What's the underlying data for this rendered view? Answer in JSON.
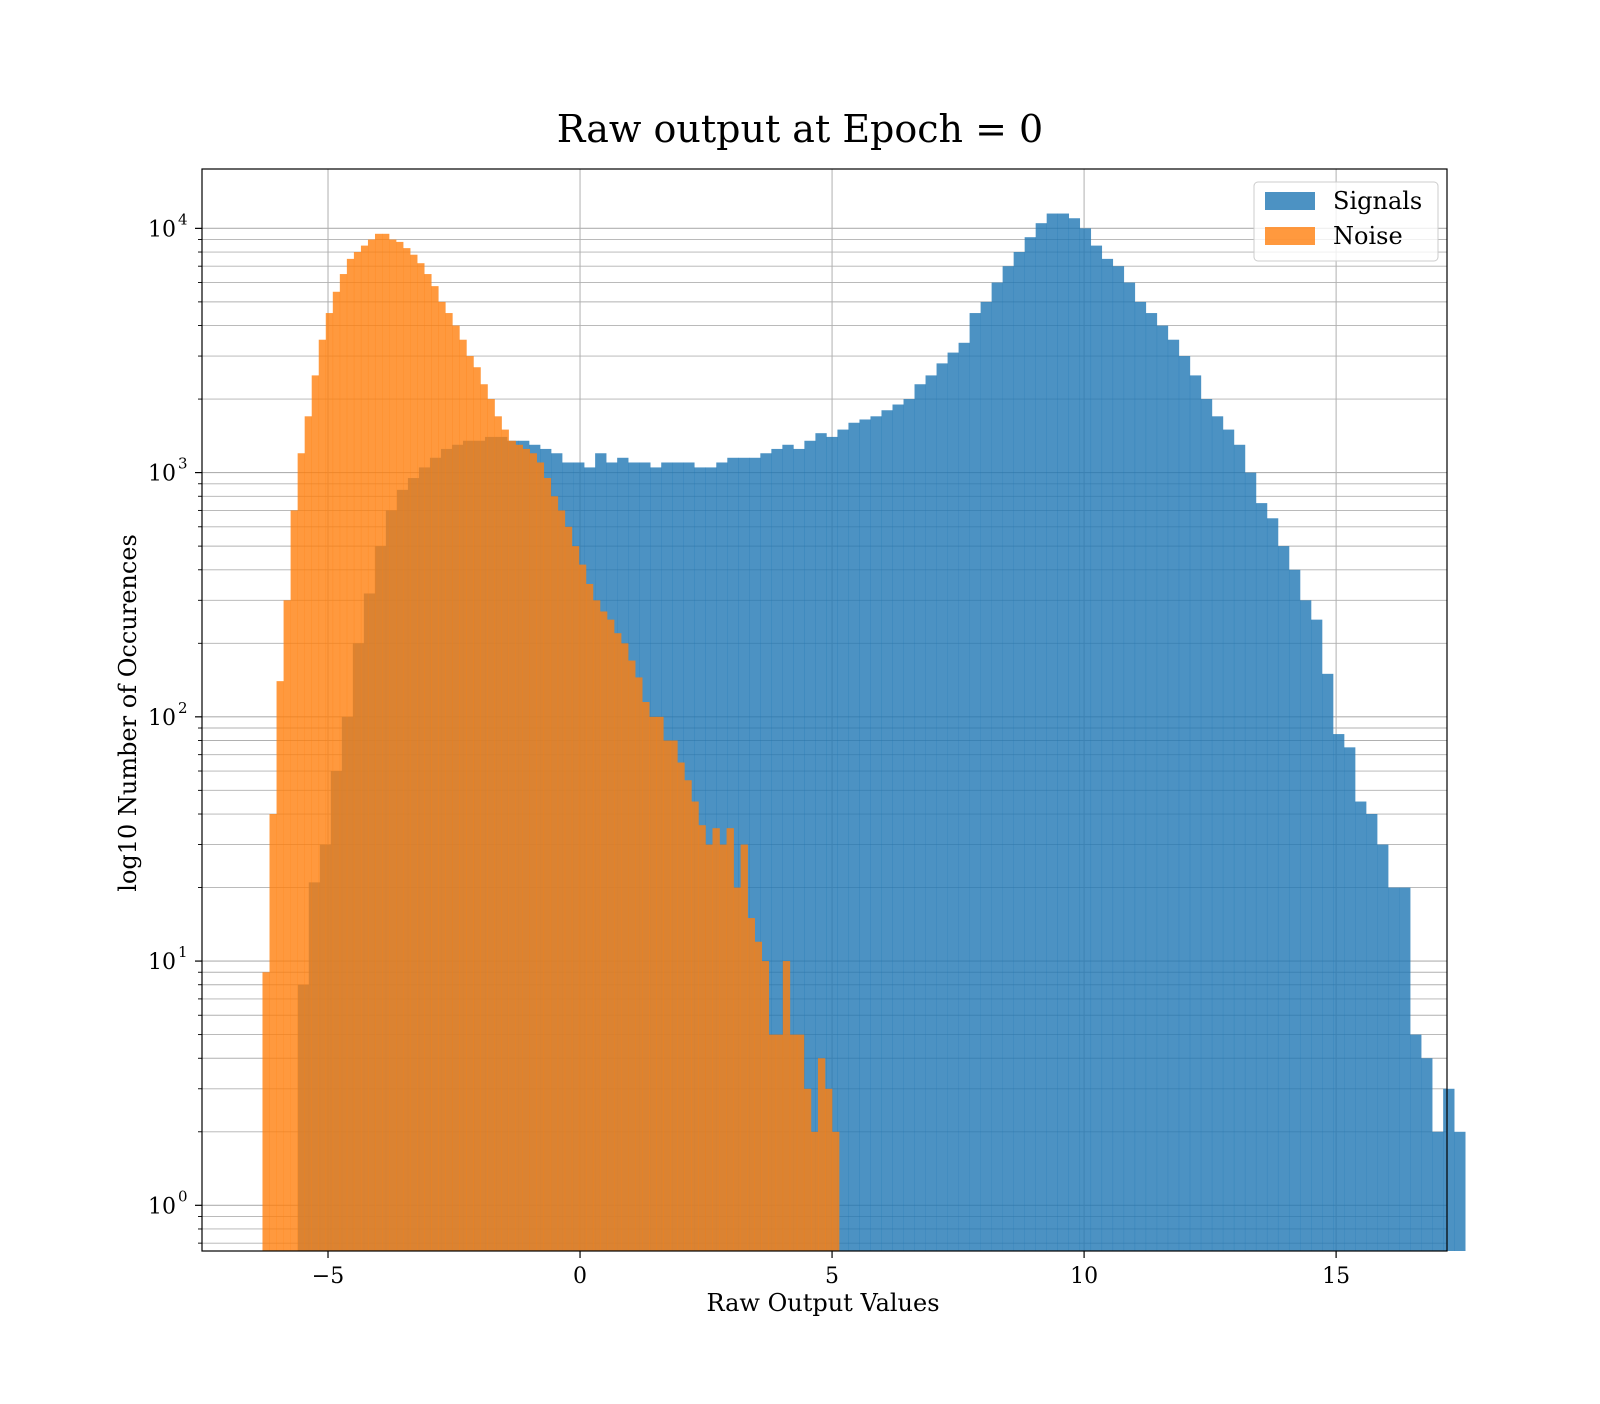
{
  "chart_data": {
    "type": "bar",
    "title": "Raw output at Epoch = 0",
    "xlabel": "Raw Output Values",
    "ylabel": "log10 Number of Occurences",
    "xlim": [
      -7.5,
      17.2
    ],
    "ylim": [
      0.65,
      17500
    ],
    "yscale": "log",
    "grid": true,
    "legend_position": "top-right",
    "x_ticks": [
      {
        "value": -5,
        "label": "−5"
      },
      {
        "value": 0,
        "label": "0"
      },
      {
        "value": 5,
        "label": "5"
      },
      {
        "value": 10,
        "label": "10"
      },
      {
        "value": 15,
        "label": "15"
      }
    ],
    "y_ticks": [
      {
        "value": 1,
        "base": "10",
        "exp": "0"
      },
      {
        "value": 10,
        "base": "10",
        "exp": "1"
      },
      {
        "value": 100,
        "base": "10",
        "exp": "2"
      },
      {
        "value": 1000,
        "base": "10",
        "exp": "3"
      },
      {
        "value": 10000,
        "base": "10",
        "exp": "4"
      }
    ],
    "series": [
      {
        "name": "Signals",
        "color": "#1f77b4",
        "opacity": 0.8,
        "bin_start": -5.6,
        "bin_width": 0.2185,
        "counts": [
          8,
          21,
          30,
          60,
          100,
          200,
          320,
          500,
          700,
          850,
          950,
          1050,
          1150,
          1250,
          1300,
          1350,
          1350,
          1400,
          1400,
          1350,
          1350,
          1300,
          1250,
          1200,
          1100,
          1100,
          1050,
          1200,
          1100,
          1150,
          1100,
          1100,
          1050,
          1100,
          1100,
          1100,
          1050,
          1050,
          1100,
          1150,
          1150,
          1150,
          1200,
          1250,
          1300,
          1250,
          1350,
          1450,
          1400,
          1500,
          1600,
          1650,
          1700,
          1800,
          1900,
          2000,
          2300,
          2500,
          2800,
          3100,
          3400,
          4500,
          5000,
          6000,
          7000,
          8000,
          9200,
          10500,
          11500,
          11500,
          11000,
          10000,
          8500,
          7500,
          7000,
          6000,
          5000,
          4500,
          4000,
          3500,
          3000,
          2500,
          2000,
          1700,
          1500,
          1300,
          1000,
          750,
          650,
          500,
          400,
          300,
          250,
          150,
          85,
          75,
          45,
          40,
          30,
          20,
          20,
          5,
          4,
          2,
          3,
          2
        ]
      },
      {
        "name": "Noise",
        "color": "#ff7f0e",
        "opacity": 0.8,
        "bin_start": -6.3,
        "bin_width": 0.1395,
        "counts": [
          9,
          40,
          140,
          300,
          700,
          1200,
          1700,
          2500,
          3500,
          4500,
          5500,
          6500,
          7500,
          8000,
          8500,
          9000,
          9500,
          9500,
          9000,
          8800,
          8300,
          7800,
          7200,
          6500,
          5800,
          5000,
          4500,
          4000,
          3500,
          3000,
          2700,
          2300,
          2000,
          1700,
          1500,
          1350,
          1300,
          1250,
          1200,
          1100,
          950,
          800,
          700,
          600,
          500,
          420,
          350,
          300,
          270,
          250,
          220,
          200,
          170,
          145,
          115,
          100,
          100,
          80,
          80,
          65,
          55,
          45,
          36,
          30,
          35,
          30,
          35,
          20,
          30,
          15,
          12,
          10,
          5,
          5,
          10,
          5,
          5,
          3,
          2,
          4,
          3,
          2
        ]
      }
    ]
  }
}
